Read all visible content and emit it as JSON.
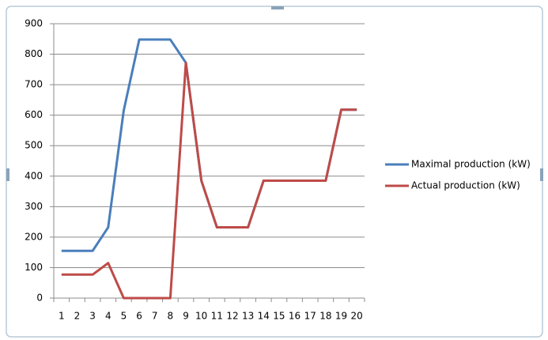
{
  "chart_data": {
    "type": "line",
    "categories": [
      1,
      2,
      3,
      4,
      5,
      6,
      7,
      8,
      9,
      10,
      11,
      12,
      13,
      14,
      15,
      16,
      17,
      18,
      19,
      20
    ],
    "series": [
      {
        "name": "Maximal production (kW)",
        "color": "#4a7ebb",
        "values": [
          155,
          155,
          155,
          232,
          615,
          848,
          848,
          848,
          772,
          385,
          232,
          232,
          232,
          385,
          385,
          385,
          385,
          385,
          618,
          618
        ]
      },
      {
        "name": "Actual production (kW)",
        "color": "#be4b48",
        "values": [
          77,
          77,
          77,
          115,
          0,
          0,
          0,
          0,
          772,
          385,
          232,
          232,
          232,
          385,
          385,
          385,
          385,
          385,
          618,
          618
        ]
      }
    ],
    "ylim": [
      0,
      900
    ],
    "yticks": [
      0,
      100,
      200,
      300,
      400,
      500,
      600,
      700,
      800,
      900
    ],
    "grid": true,
    "legend": "right"
  }
}
